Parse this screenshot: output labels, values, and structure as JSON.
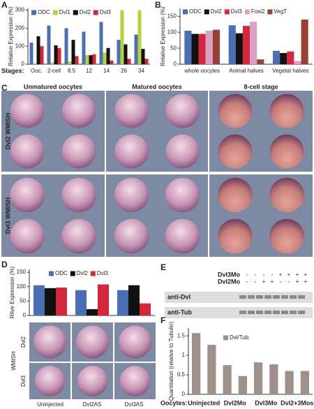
{
  "chart_data": [
    {
      "type": "bar",
      "label": "A",
      "y_label": "Relative Expression (%)",
      "x_label": "Stages:",
      "categories": [
        "Ooc.",
        "2-cell",
        "8.5",
        "12",
        "14",
        "26",
        "34"
      ],
      "series": [
        {
          "name": "ODC",
          "color": "#4a6fb5",
          "values": [
            120,
            215,
            200,
            180,
            235,
            135,
            165
          ]
        },
        {
          "name": "Dvl1",
          "color": "#b5d33a",
          "values": [
            5,
            10,
            15,
            50,
            65,
            300,
            300
          ]
        },
        {
          "name": "Dvl2",
          "color": "#111111",
          "values": [
            155,
            105,
            135,
            50,
            90,
            110,
            85
          ]
        },
        {
          "name": "Dvl3",
          "color": "#d6263a",
          "values": [
            100,
            90,
            45,
            55,
            20,
            30,
            30
          ]
        }
      ],
      "ylim": [
        0,
        310
      ],
      "yticks": [
        0,
        100,
        200,
        300
      ],
      "legend": "top"
    },
    {
      "type": "bar",
      "label": "B",
      "y_label": "Relative Expression (%)",
      "categories": [
        "whole oocytes",
        "Animal halves",
        "Vegetal halves"
      ],
      "series": [
        {
          "name": "ODC",
          "color": "#4a6fb5",
          "values": [
            105,
            122,
            42
          ]
        },
        {
          "name": "Dvl2",
          "color": "#111111",
          "values": [
            95,
            97,
            35
          ]
        },
        {
          "name": "Dvl3",
          "color": "#d6263a",
          "values": [
            95,
            120,
            40
          ]
        },
        {
          "name": "Foxi2",
          "color": "#d7a0c4",
          "values": [
            105,
            133,
            10
          ]
        },
        {
          "name": "VegT",
          "color": "#9a3f33",
          "values": [
            108,
            15,
            140
          ]
        }
      ],
      "ylim": [
        0,
        175
      ],
      "yticks": [
        0,
        50,
        100,
        150
      ],
      "legend": "top"
    },
    {
      "type": "bar",
      "label": "D",
      "y_label": "Rltve Expression (%)",
      "categories": [
        "Uninjected",
        "Dvl2AS",
        "Dvl3AS"
      ],
      "series": [
        {
          "name": "ODC",
          "color": "#4a6fb5",
          "values": [
            105,
            88,
            88
          ]
        },
        {
          "name": "Dvl2",
          "color": "#111111",
          "values": [
            95,
            22,
            105
          ]
        },
        {
          "name": "Dvl3",
          "color": "#d6263a",
          "values": [
            97,
            108,
            42
          ]
        }
      ],
      "ylim": [
        0,
        160
      ],
      "yticks": [
        0,
        50,
        100,
        150
      ],
      "legend": "top"
    },
    {
      "type": "bar",
      "label": "F",
      "y_label": "Quantitation (relative to Tubulin)",
      "x_label": "Oocytes:",
      "categories": [
        null,
        null,
        null,
        null,
        null,
        null,
        null,
        null
      ],
      "groups": [
        "Uninjected",
        "Dvl2Mo",
        "Dvl3Mo",
        "Dvl2+3Mos"
      ],
      "series": [
        {
          "name": "Dvl/Tub",
          "color": "#9e9189",
          "values": [
            1.57,
            1.27,
            0.75,
            0.47,
            0.82,
            0.77,
            0.6,
            0.6
          ]
        }
      ],
      "ylim": [
        0,
        1.7
      ],
      "yticks": [
        0,
        0.5,
        1,
        1.5
      ],
      "legend": "top"
    }
  ],
  "panel_c": {
    "label": "C",
    "columns": [
      "Unmatured oocytes",
      "Matured oocytes",
      "8-cell stage"
    ],
    "rows": [
      "Dvl2 WMISH",
      "Dvl3 WMISH"
    ]
  },
  "panel_d_images": {
    "row_title": "WMISH",
    "rows": [
      "Dvl2",
      "Dvl3"
    ]
  },
  "panel_e": {
    "label": "E",
    "conditions": [
      {
        "name": "Dvl3Mo",
        "signs": [
          "-",
          "-",
          "-",
          "-",
          "+",
          "+",
          "+",
          "+"
        ]
      },
      {
        "name": "Dvl2Mo",
        "signs": [
          "-",
          "-",
          "+",
          "+",
          "-",
          "-",
          "+",
          "+"
        ]
      }
    ],
    "blots": [
      "anti-Dvl",
      "anti-Tub"
    ]
  }
}
